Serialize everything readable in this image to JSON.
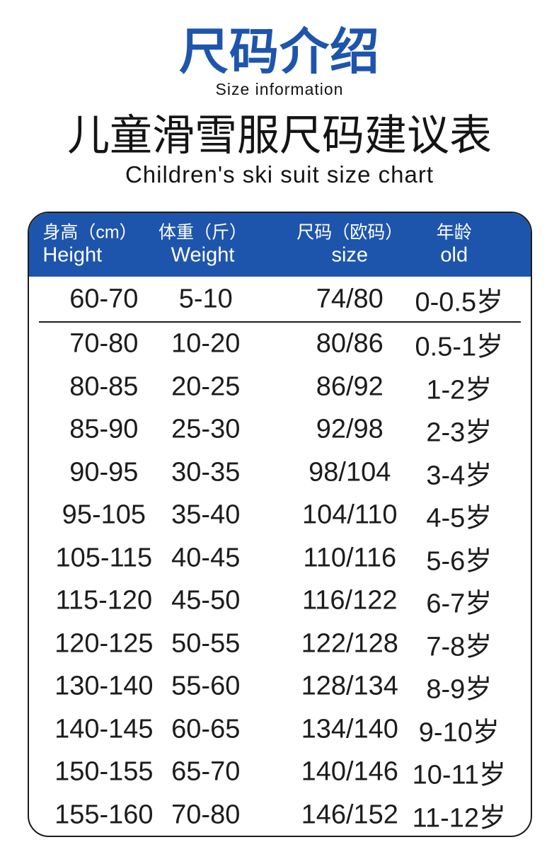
{
  "header": {
    "title_zh": "尺码介绍",
    "title_en": "Size information",
    "chart_title_zh": "儿童滑雪服尺码建议表",
    "chart_title_en": "Children's ski suit size chart"
  },
  "colors": {
    "accent_blue": "#1e55ac",
    "text_black": "#1c1c1c",
    "background": "#ffffff",
    "header_text": "#ffffff"
  },
  "table": {
    "headers": [
      {
        "zh": "身高（cm）",
        "en": "Height"
      },
      {
        "zh": "体重（斤）",
        "en": "Weight"
      },
      {
        "zh": "尺码（欧码）",
        "en": "size"
      },
      {
        "zh": "年龄",
        "en": "old"
      }
    ],
    "rows": [
      {
        "height": "60-70",
        "weight": "5-10",
        "size": "74/80",
        "age": "0-0.5岁"
      },
      {
        "height": "70-80",
        "weight": "10-20",
        "size": "80/86",
        "age": "0.5-1岁"
      },
      {
        "height": "80-85",
        "weight": "20-25",
        "size": "86/92",
        "age": "1-2岁"
      },
      {
        "height": "85-90",
        "weight": "25-30",
        "size": "92/98",
        "age": "2-3岁"
      },
      {
        "height": "90-95",
        "weight": "30-35",
        "size": "98/104",
        "age": "3-4岁"
      },
      {
        "height": "95-105",
        "weight": "35-40",
        "size": "104/110",
        "age": "4-5岁"
      },
      {
        "height": "105-115",
        "weight": "40-45",
        "size": "110/116",
        "age": "5-6岁"
      },
      {
        "height": "115-120",
        "weight": "45-50",
        "size": "116/122",
        "age": "6-7岁"
      },
      {
        "height": "120-125",
        "weight": "50-55",
        "size": "122/128",
        "age": "7-8岁"
      },
      {
        "height": "130-140",
        "weight": "55-60",
        "size": "128/134",
        "age": "8-9岁"
      },
      {
        "height": "140-145",
        "weight": "60-65",
        "size": "134/140",
        "age": "9-10岁"
      },
      {
        "height": "150-155",
        "weight": "65-70",
        "size": "140/146",
        "age": "10-11岁"
      },
      {
        "height": "155-160",
        "weight": "70-80",
        "size": "146/152",
        "age": "11-12岁"
      }
    ]
  }
}
